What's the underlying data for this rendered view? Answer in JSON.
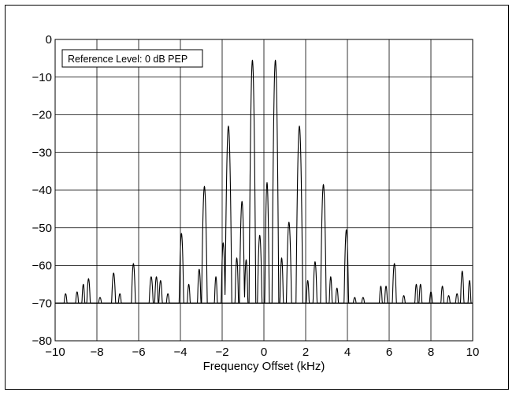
{
  "chart_data": {
    "type": "line",
    "title": "",
    "xlabel": "Frequency Offset (kHz)",
    "ylabel": "",
    "xlim": [
      -10,
      10
    ],
    "ylim": [
      -80,
      0
    ],
    "grid": true,
    "baseline": -70,
    "annotation": "Reference Level: 0 dB PEP",
    "x_ticks": [
      "−10",
      "−8",
      "−6",
      "−4",
      "−2",
      "0",
      "2",
      "4",
      "6",
      "8",
      "10"
    ],
    "y_ticks": [
      "0",
      "−10",
      "−20",
      "−30",
      "−40",
      "−50",
      "−60",
      "−70",
      "−80"
    ],
    "series": [
      {
        "peaks": [
          {
            "x": -0.55,
            "y": -5.5,
            "w": 0.12
          },
          {
            "x": 0.55,
            "y": -5.5,
            "w": 0.12
          },
          {
            "x": -1.7,
            "y": -23,
            "w": 0.12
          },
          {
            "x": 1.7,
            "y": -23,
            "w": 0.12
          },
          {
            "x": -2.85,
            "y": -39,
            "w": 0.1
          },
          {
            "x": 2.85,
            "y": -38.5,
            "w": 0.1
          },
          {
            "x": -0.2,
            "y": -52,
            "w": 0.08
          },
          {
            "x": 0.15,
            "y": -38,
            "w": 0.08
          },
          {
            "x": -1.05,
            "y": -43,
            "w": 0.09
          },
          {
            "x": 1.2,
            "y": -48.5,
            "w": 0.09
          },
          {
            "x": -1.95,
            "y": -54,
            "w": 0.07
          },
          {
            "x": 2.45,
            "y": -59,
            "w": 0.07
          },
          {
            "x": -3.95,
            "y": -51.5,
            "w": 0.08
          },
          {
            "x": 3.95,
            "y": -50.5,
            "w": 0.08
          },
          {
            "x": -1.3,
            "y": -58,
            "w": 0.06
          },
          {
            "x": 0.85,
            "y": -58,
            "w": 0.06
          },
          {
            "x": -0.85,
            "y": -58.5,
            "w": 0.06
          },
          {
            "x": -3.1,
            "y": -61,
            "w": 0.06
          },
          {
            "x": -2.3,
            "y": -63,
            "w": 0.05
          },
          {
            "x": 2.1,
            "y": -64,
            "w": 0.05
          },
          {
            "x": 3.2,
            "y": -63,
            "w": 0.05
          },
          {
            "x": -6.25,
            "y": -59.5,
            "w": 0.07
          },
          {
            "x": 6.25,
            "y": -59.5,
            "w": 0.07
          },
          {
            "x": -7.2,
            "y": -62,
            "w": 0.07
          },
          {
            "x": -5.4,
            "y": -63,
            "w": 0.07
          },
          {
            "x": -5.15,
            "y": -63,
            "w": 0.06
          },
          {
            "x": -4.95,
            "y": -64,
            "w": 0.06
          },
          {
            "x": -8.4,
            "y": -63.5,
            "w": 0.06
          },
          {
            "x": -8.65,
            "y": -65,
            "w": 0.05
          },
          {
            "x": 7.3,
            "y": -65,
            "w": 0.05
          },
          {
            "x": 7.5,
            "y": -65,
            "w": 0.05
          },
          {
            "x": 5.6,
            "y": -65.5,
            "w": 0.05
          },
          {
            "x": 5.85,
            "y": -65.5,
            "w": 0.05
          },
          {
            "x": 8.55,
            "y": -65.5,
            "w": 0.05
          },
          {
            "x": 9.5,
            "y": -61.5,
            "w": 0.06
          },
          {
            "x": 9.85,
            "y": -64,
            "w": 0.05
          },
          {
            "x": -9.5,
            "y": -67.5,
            "w": 0.05
          },
          {
            "x": -8.95,
            "y": -67,
            "w": 0.05
          },
          {
            "x": -7.85,
            "y": -68.5,
            "w": 0.05
          },
          {
            "x": -6.9,
            "y": -67.5,
            "w": 0.05
          },
          {
            "x": -4.6,
            "y": -67.5,
            "w": 0.05
          },
          {
            "x": -3.6,
            "y": -65,
            "w": 0.05
          },
          {
            "x": -0.6,
            "y": -63,
            "w": 0.05
          },
          {
            "x": 3.5,
            "y": -66,
            "w": 0.05
          },
          {
            "x": 4.35,
            "y": -68.5,
            "w": 0.05
          },
          {
            "x": 4.75,
            "y": -68.5,
            "w": 0.05
          },
          {
            "x": 6.7,
            "y": -68,
            "w": 0.05
          },
          {
            "x": 8.0,
            "y": -67,
            "w": 0.05
          },
          {
            "x": 8.85,
            "y": -68,
            "w": 0.05
          },
          {
            "x": 9.25,
            "y": -67.5,
            "w": 0.05
          }
        ]
      }
    ]
  }
}
